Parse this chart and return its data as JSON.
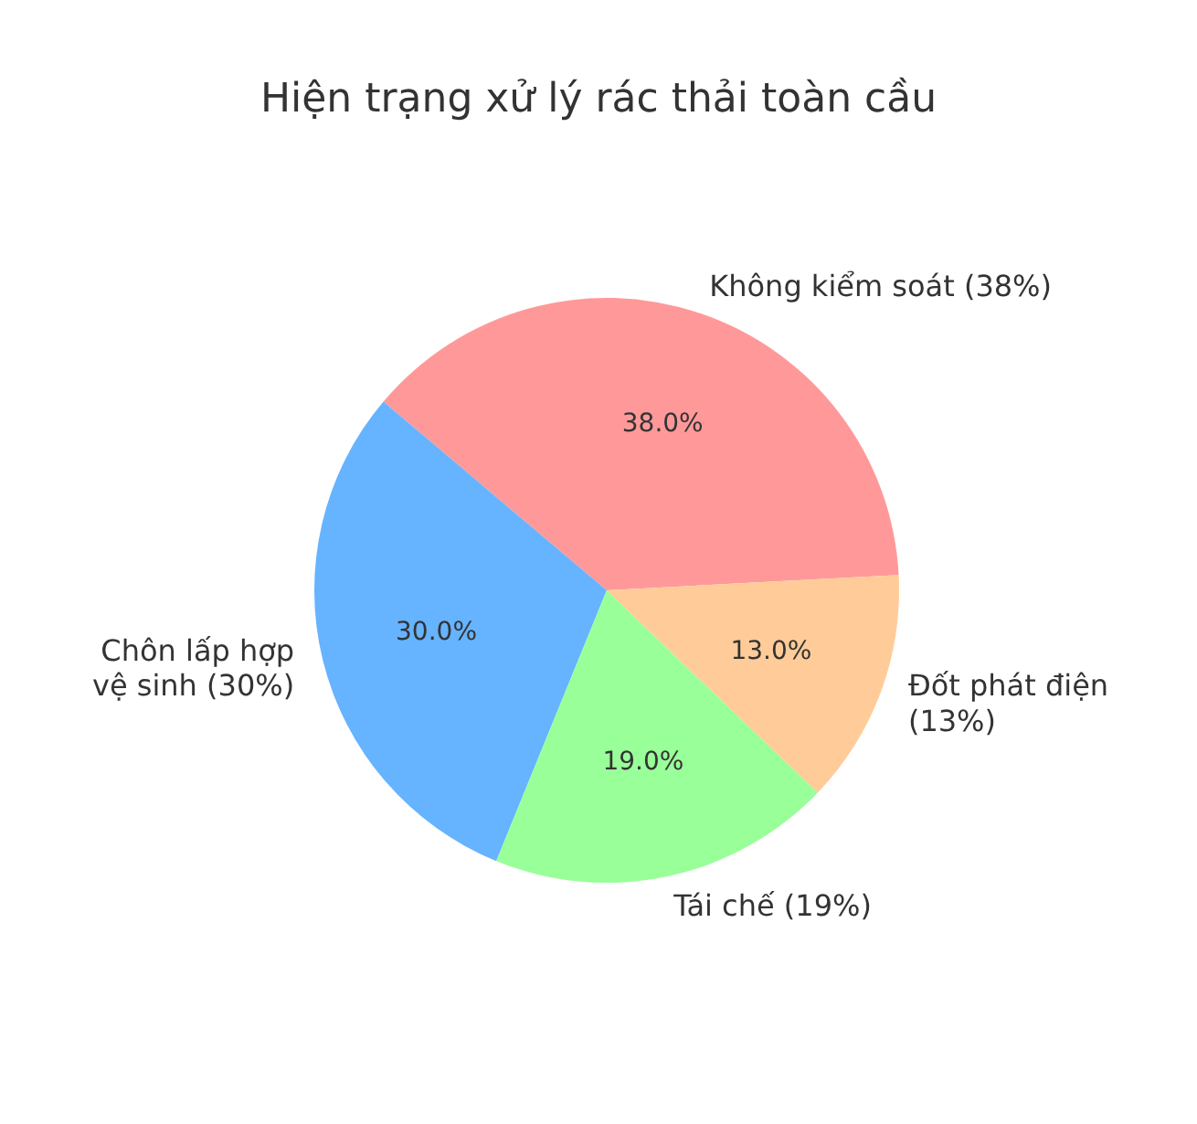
{
  "chart_data": {
    "type": "pie",
    "title": "Hiện trạng xử lý rác thải toàn cầu",
    "categories": [
      "Không kiểm soát (38%)",
      "Chôn lấp hợp vệ sinh (30%)",
      "Tái chế (19%)",
      "Đốt phát điện (13%)"
    ],
    "values": [
      38,
      30,
      19,
      13
    ],
    "colors": [
      "#ff9999",
      "#66b3ff",
      "#99ff99",
      "#ffcc99"
    ],
    "value_labels": [
      "38.0%",
      "30.0%",
      "19.0%",
      "13.0%"
    ]
  }
}
